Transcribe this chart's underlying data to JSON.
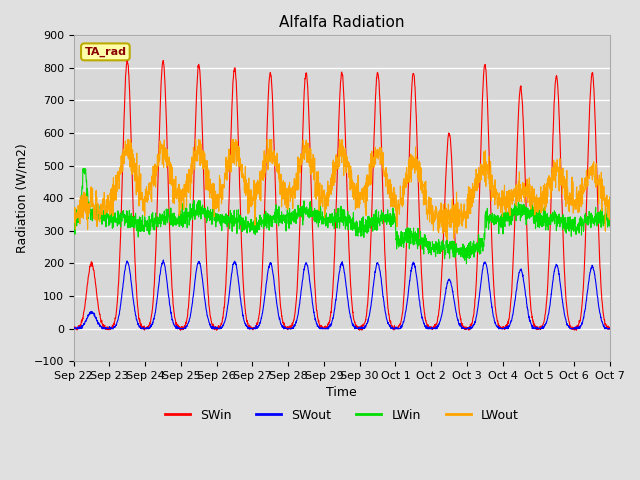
{
  "title": "Alfalfa Radiation",
  "xlabel": "Time",
  "ylabel": "Radiation (W/m2)",
  "ylim": [
    -100,
    900
  ],
  "fig_bg": "#e0e0e0",
  "plot_bg": "#d8d8d8",
  "grid_color": "#ffffff",
  "series_colors": {
    "SWin": "#ff0000",
    "SWout": "#0000ff",
    "LWin": "#00dd00",
    "LWout": "#ffa500"
  },
  "legend_label": "TA_rad",
  "legend_box_facecolor": "#ffffaa",
  "legend_box_edgecolor": "#bbaa00",
  "x_tick_labels": [
    "Sep 22",
    "Sep 23",
    "Sep 24",
    "Sep 25",
    "Sep 26",
    "Sep 27",
    "Sep 28",
    "Sep 29",
    "Sep 30",
    "Oct 1",
    "Oct 2",
    "Oct 3",
    "Oct 4",
    "Oct 5",
    "Oct 6",
    "Oct 7"
  ],
  "yticks": [
    -100,
    0,
    100,
    200,
    300,
    400,
    500,
    600,
    700,
    800,
    900
  ],
  "n_days": 15,
  "pts_per_day": 144,
  "seed": 42
}
